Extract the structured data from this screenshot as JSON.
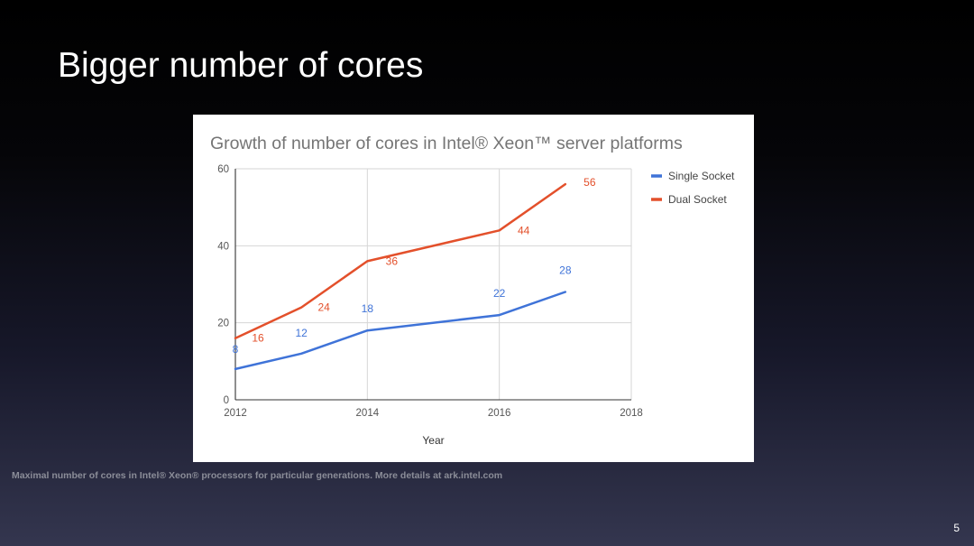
{
  "slide": {
    "title": "Bigger number of cores",
    "footnote": "Maximal number of cores in Intel® Xeon® processors for particular generations. More details at ark.intel.com",
    "page_number": "5"
  },
  "chart_data": {
    "type": "line",
    "title": "Growth of number of cores in Intel® Xeon™ server platforms",
    "xlabel": "Year",
    "ylabel": "",
    "xlim": [
      2012,
      2018
    ],
    "ylim": [
      0,
      60
    ],
    "x_ticks": [
      "2012",
      "2014",
      "2016",
      "2018"
    ],
    "y_ticks": [
      "0",
      "20",
      "40",
      "60"
    ],
    "grid": true,
    "legend_position": "right",
    "series": [
      {
        "name": "Single Socket",
        "color": "#3f73d8",
        "x": [
          2012,
          2013,
          2014,
          2016,
          2017
        ],
        "values": [
          8,
          12,
          18,
          22,
          28
        ]
      },
      {
        "name": "Dual Socket",
        "color": "#e3502b",
        "x": [
          2012,
          2013,
          2014,
          2016,
          2017
        ],
        "values": [
          16,
          24,
          36,
          44,
          56
        ]
      }
    ]
  }
}
